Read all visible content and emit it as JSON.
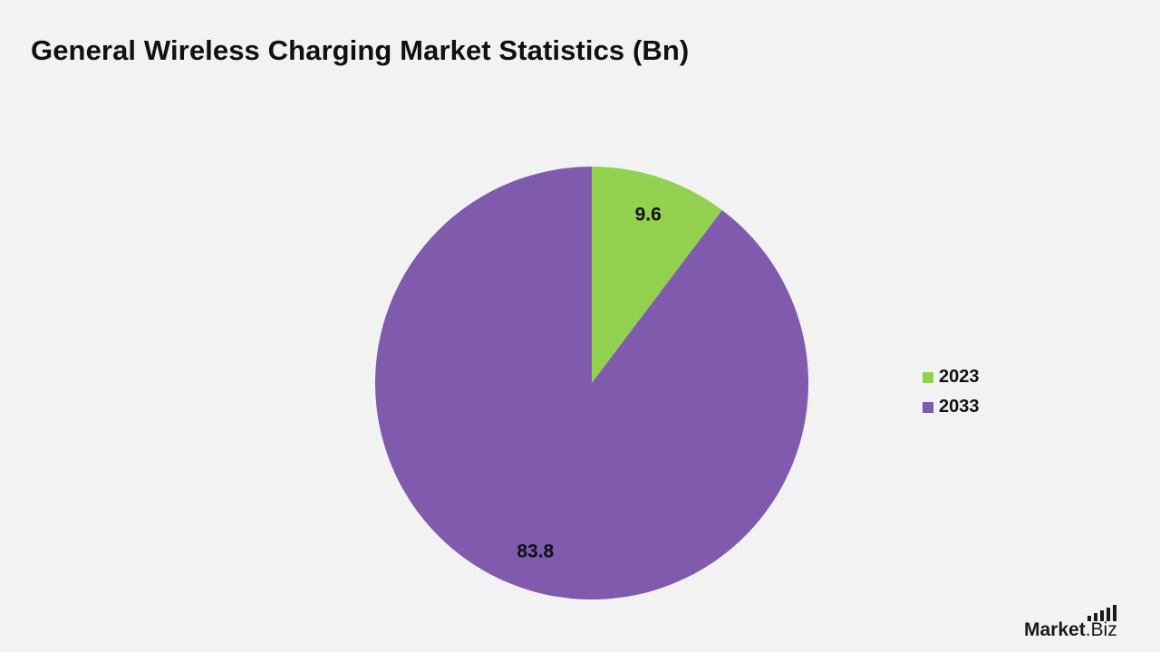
{
  "chart_data": {
    "type": "pie",
    "title": "General Wireless Charging Market Statistics (Bn)",
    "slices": [
      {
        "name": "2023",
        "value": 9.6,
        "label": "9.6",
        "color": "#92d050"
      },
      {
        "name": "2033",
        "value": 83.8,
        "label": "83.8",
        "color": "#7f5aad"
      }
    ],
    "start_angle": "12 o'clock, clockwise",
    "legend_position": "right"
  },
  "brand": {
    "logo_text": "Market",
    "logo_suffix": ".Biz"
  }
}
